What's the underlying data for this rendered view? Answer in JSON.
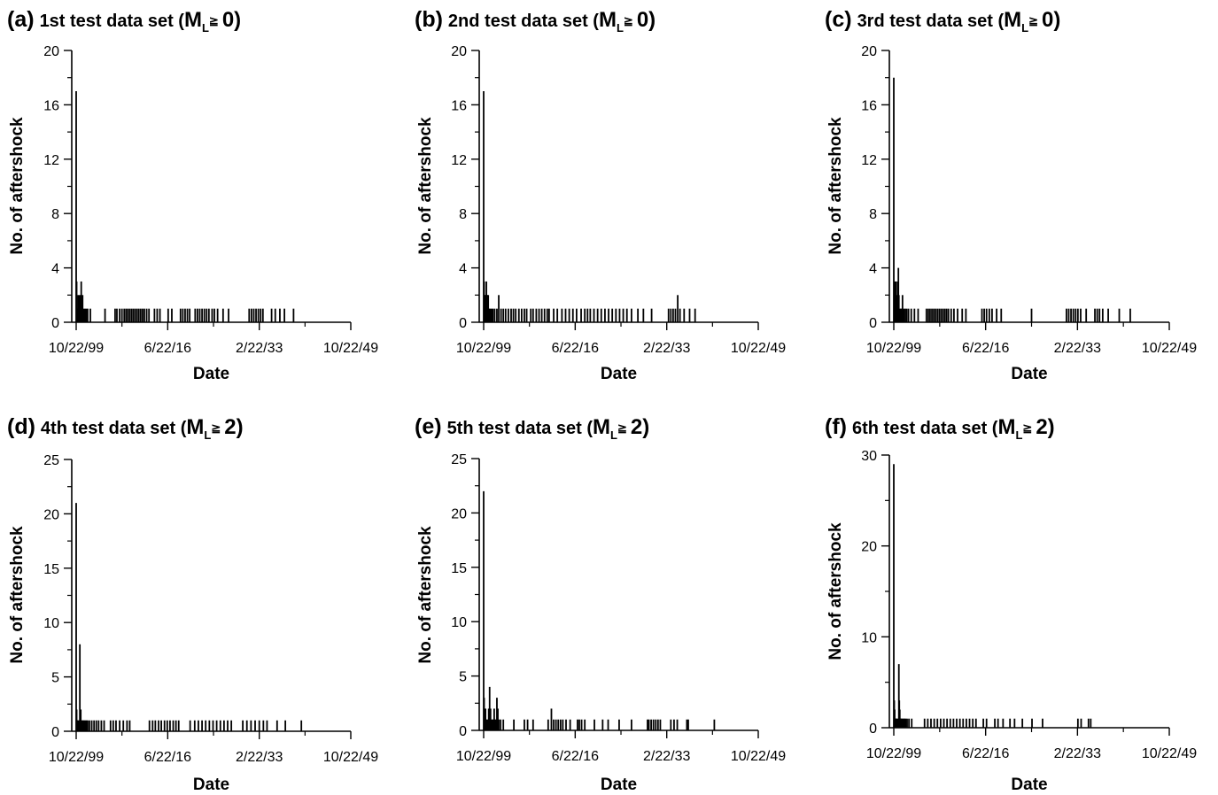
{
  "chart_data": [
    {
      "panel": "(a)",
      "title": "1st test data set",
      "condition": {
        "symbol": "M",
        "subscript": "L",
        "op": "≧",
        "value": "0"
      },
      "type": "bar",
      "xlabel": "Date",
      "ylabel": "No. of aftershock",
      "xticks": [
        "10/22/99",
        "6/22/16",
        "2/22/33",
        "10/22/49"
      ],
      "xlim": [
        "10/22/99",
        "10/22/49"
      ],
      "ylim": [
        0,
        20
      ],
      "yticks": [
        "0",
        "4",
        "8",
        "12",
        "16",
        "20"
      ],
      "x": [
        "10/22/99",
        "11/22/99",
        "12/22/99",
        "1/22/00",
        "2/22/00",
        "3/22/00",
        "5/22/00",
        "6/22/00",
        "8/22/00",
        "9/22/00",
        "12/22/00",
        "2/22/01",
        "5/22/01",
        "8/22/01",
        "11/22/01",
        "5/22/02",
        "1/22/05",
        "11/22/06",
        "3/22/07",
        "9/22/07",
        "2/22/08",
        "7/22/08",
        "11/22/08",
        "3/22/09",
        "7/22/09",
        "11/22/09",
        "3/22/10",
        "7/22/10",
        "11/22/10",
        "3/22/11",
        "7/22/11",
        "11/22/11",
        "3/22/12",
        "8/22/12",
        "1/22/13",
        "1/22/14",
        "7/22/14",
        "1/22/15",
        "7/22/16",
        "3/22/17",
        "10/22/18",
        "3/22/19",
        "8/22/19",
        "1/22/20",
        "6/22/20",
        "6/22/21",
        "11/22/21",
        "4/22/22",
        "9/22/22",
        "2/22/23",
        "7/22/23",
        "12/22/23",
        "7/22/24",
        "12/22/24",
        "7/22/25",
        "7/22/26",
        "7/22/27",
        "4/22/31",
        "9/22/31",
        "2/22/32",
        "7/22/32",
        "12/22/32",
        "5/22/33",
        "10/22/33",
        "5/22/35",
        "1/22/36",
        "11/22/36",
        "9/22/37",
        "5/22/39"
      ],
      "values": [
        17,
        3,
        1,
        1,
        2,
        1,
        2,
        1,
        2,
        3,
        2,
        1,
        1,
        1,
        1,
        1,
        1,
        1,
        1,
        1,
        1,
        1,
        1,
        1,
        1,
        1,
        1,
        1,
        1,
        1,
        1,
        1,
        1,
        1,
        1,
        1,
        1,
        1,
        1,
        1,
        1,
        1,
        1,
        1,
        1,
        1,
        1,
        1,
        1,
        1,
        1,
        1,
        1,
        1,
        1,
        1,
        1,
        1,
        1,
        1,
        1,
        1,
        1,
        1,
        1,
        1,
        1,
        1,
        1
      ]
    },
    {
      "panel": "(b)",
      "title": "2nd  test data set",
      "condition": {
        "symbol": "M",
        "subscript": "L",
        "op": "≧",
        "value": "0"
      },
      "type": "bar",
      "xlabel": "Date",
      "ylabel": "No. of aftershock",
      "xticks": [
        "10/22/99",
        "6/22/16",
        "2/22/33",
        "10/22/49"
      ],
      "xlim": [
        "10/22/99",
        "10/22/49"
      ],
      "ylim": [
        0,
        20
      ],
      "yticks": [
        "0",
        "4",
        "8",
        "12",
        "16",
        "20"
      ],
      "x": [
        "10/22/99",
        "11/22/99",
        "12/22/99",
        "1/22/00",
        "2/22/00",
        "3/22/00",
        "4/22/00",
        "5/22/00",
        "6/22/00",
        "7/22/00",
        "8/22/00",
        "10/22/00",
        "12/22/00",
        "3/22/01",
        "6/22/01",
        "10/22/01",
        "3/22/02",
        "7/22/02",
        "12/22/02",
        "5/22/03",
        "10/22/03",
        "4/22/04",
        "10/22/04",
        "3/22/05",
        "8/22/05",
        "3/22/06",
        "9/22/06",
        "3/22/07",
        "8/22/07",
        "5/22/08",
        "10/22/08",
        "5/22/09",
        "11/22/09",
        "5/22/10",
        "11/22/10",
        "5/22/11",
        "9/22/11",
        "7/22/12",
        "3/22/13",
        "1/22/14",
        "9/22/14",
        "5/22/15",
        "1/22/16",
        "9/22/16",
        "7/22/17",
        "3/22/18",
        "9/22/18",
        "3/22/19",
        "11/22/19",
        "7/22/20",
        "3/22/21",
        "11/22/21",
        "7/22/22",
        "3/22/23",
        "11/22/23",
        "7/22/24",
        "3/22/25",
        "11/22/25",
        "9/22/26",
        "11/22/27",
        "11/22/28",
        "5/22/30",
        "6/22/33",
        "11/22/33",
        "4/22/34",
        "9/22/34",
        "2/22/35",
        "7/22/35",
        "4/22/36",
        "4/22/37",
        "4/22/38"
      ],
      "values": [
        17,
        3,
        2,
        1,
        2,
        2,
        3,
        2,
        2,
        1,
        2,
        1,
        1,
        1,
        1,
        1,
        1,
        2,
        1,
        1,
        1,
        1,
        1,
        1,
        1,
        1,
        1,
        1,
        1,
        1,
        1,
        1,
        1,
        1,
        1,
        1,
        1,
        1,
        1,
        1,
        1,
        1,
        1,
        1,
        1,
        1,
        1,
        1,
        1,
        1,
        1,
        1,
        1,
        1,
        1,
        1,
        1,
        1,
        1,
        1,
        1,
        1,
        1,
        1,
        1,
        1,
        2,
        1,
        1,
        1,
        1
      ]
    },
    {
      "panel": "(c)",
      "title": "3rd test data set",
      "condition": {
        "symbol": "M",
        "subscript": "L",
        "op": "≧",
        "value": "0"
      },
      "type": "bar",
      "xlabel": "Date",
      "ylabel": "No. of aftershock",
      "xticks": [
        "10/22/99",
        "6/22/16",
        "2/22/33",
        "10/22/49"
      ],
      "xlim": [
        "10/22/99",
        "10/22/49"
      ],
      "ylim": [
        0,
        20
      ],
      "yticks": [
        "0",
        "4",
        "8",
        "12",
        "16",
        "20"
      ],
      "x": [
        "10/22/99",
        "11/22/99",
        "12/22/99",
        "1/22/00",
        "3/22/00",
        "5/22/00",
        "7/22/00",
        "8/22/00",
        "9/22/00",
        "11/22/00",
        "1/22/01",
        "3/22/01",
        "5/22/01",
        "8/22/01",
        "11/22/01",
        "2/22/02",
        "6/22/02",
        "12/22/02",
        "7/22/03",
        "3/22/04",
        "9/22/05",
        "1/22/06",
        "5/22/06",
        "9/22/06",
        "1/22/07",
        "5/22/07",
        "9/22/07",
        "1/22/08",
        "5/22/08",
        "9/22/08",
        "1/22/09",
        "5/22/09",
        "9/22/09",
        "3/22/10",
        "9/22/10",
        "5/22/11",
        "3/22/12",
        "11/22/12",
        "10/22/15",
        "3/22/16",
        "8/22/16",
        "2/22/17",
        "8/22/17",
        "6/22/18",
        "4/22/19",
        "10/22/24",
        "2/22/31",
        "7/22/31",
        "12/22/31",
        "5/22/32",
        "10/22/32",
        "3/22/33",
        "9/22/33",
        "9/22/34",
        "4/22/36",
        "9/22/36",
        "2/22/37",
        "9/22/37",
        "9/22/38",
        "9/22/40",
        "9/22/42"
      ],
      "values": [
        18,
        2,
        3,
        2,
        3,
        2,
        3,
        4,
        2,
        1,
        1,
        1,
        2,
        1,
        1,
        1,
        1,
        1,
        1,
        1,
        1,
        1,
        1,
        1,
        1,
        1,
        1,
        1,
        1,
        1,
        1,
        1,
        1,
        1,
        1,
        1,
        1,
        1,
        1,
        1,
        1,
        1,
        1,
        1,
        1,
        1,
        1,
        1,
        1,
        1,
        1,
        1,
        1,
        1,
        1,
        1,
        1,
        1,
        1,
        1,
        1
      ]
    },
    {
      "panel": "(d)",
      "title": "4th test data set",
      "condition": {
        "symbol": "M",
        "subscript": "L",
        "op": "≧",
        "value": "2"
      },
      "type": "bar",
      "xlabel": "Date",
      "ylabel": "No. of aftershock",
      "xticks": [
        "10/22/99",
        "6/22/16",
        "2/22/33",
        "10/22/49"
      ],
      "xlim": [
        "10/22/99",
        "10/22/49"
      ],
      "ylim": [
        0,
        25
      ],
      "yticks": [
        "0",
        "5",
        "10",
        "15",
        "20",
        "25"
      ],
      "x": [
        "10/22/99",
        "11/22/99",
        "12/22/99",
        "1/22/00",
        "2/22/00",
        "4/22/00",
        "6/22/00",
        "8/22/00",
        "10/22/00",
        "12/22/00",
        "1/22/01",
        "3/22/01",
        "5/22/01",
        "7/22/01",
        "9/22/01",
        "11/22/01",
        "3/22/02",
        "8/22/02",
        "1/22/03",
        "6/22/03",
        "11/22/03",
        "5/22/04",
        "11/22/04",
        "1/22/06",
        "7/22/06",
        "1/22/07",
        "9/22/07",
        "5/22/08",
        "1/22/09",
        "7/22/09",
        "2/22/13",
        "9/22/13",
        "3/22/14",
        "10/22/14",
        "4/22/15",
        "11/22/15",
        "5/22/16",
        "11/22/16",
        "6/22/17",
        "12/22/17",
        "6/22/18",
        "7/22/20",
        "5/22/21",
        "1/22/22",
        "9/22/22",
        "5/22/23",
        "1/22/24",
        "9/22/24",
        "5/22/25",
        "1/22/26",
        "9/22/26",
        "5/22/27",
        "1/22/28",
        "2/22/30",
        "11/22/30",
        "8/22/31",
        "5/22/32",
        "2/22/33",
        "11/22/33",
        "7/22/34",
        "5/22/36",
        "11/22/37",
        "10/22/40"
      ],
      "values": [
        21,
        2,
        1,
        1,
        1,
        1,
        8,
        2,
        1,
        1,
        1,
        1,
        1,
        1,
        1,
        1,
        1,
        1,
        1,
        1,
        1,
        1,
        1,
        1,
        1,
        1,
        1,
        1,
        1,
        1,
        1,
        1,
        1,
        1,
        1,
        1,
        1,
        1,
        1,
        1,
        1,
        1,
        1,
        1,
        1,
        1,
        1,
        1,
        1,
        1,
        1,
        1,
        1,
        1,
        1,
        1,
        1,
        1,
        1,
        1,
        1,
        1,
        1
      ]
    },
    {
      "panel": "(e)",
      "title": "5th test data set",
      "condition": {
        "symbol": "M",
        "subscript": "L",
        "op": "≧",
        "value": "2"
      },
      "type": "bar",
      "xlabel": "Date",
      "ylabel": "No. of aftershock",
      "xticks": [
        "10/22/99",
        "6/22/16",
        "2/22/33",
        "10/22/49"
      ],
      "xlim": [
        "10/22/99",
        "10/22/49"
      ],
      "ylim": [
        0,
        25
      ],
      "yticks": [
        "0",
        "5",
        "10",
        "15",
        "20",
        "25"
      ],
      "x": [
        "10/22/99",
        "11/22/99",
        "12/22/99",
        "1/22/00",
        "2/22/00",
        "3/22/00",
        "5/22/00",
        "7/22/00",
        "9/22/00",
        "11/22/00",
        "1/22/01",
        "3/22/01",
        "5/22/01",
        "7/22/01",
        "9/22/01",
        "11/22/01",
        "1/22/02",
        "3/22/02",
        "5/22/02",
        "7/22/02",
        "11/22/02",
        "5/22/03",
        "4/22/05",
        "3/22/07",
        "10/22/07",
        "10/22/08",
        "7/22/11",
        "2/22/12",
        "7/22/12",
        "12/22/12",
        "5/22/13",
        "10/22/13",
        "3/22/14",
        "10/22/14",
        "7/22/15",
        "11/22/16",
        "3/22/17",
        "8/22/17",
        "3/22/18",
        "12/22/19",
        "6/22/21",
        "6/22/22",
        "6/22/24",
        "9/22/26",
        "8/22/29",
        "11/22/29",
        "4/22/30",
        "9/22/30",
        "2/22/31",
        "7/22/31",
        "12/22/31",
        "11/22/33",
        "6/22/34",
        "1/22/35",
        "10/22/36",
        "1/22/37",
        "10/22/41"
      ],
      "values": [
        22,
        3,
        2,
        1,
        2,
        1,
        1,
        1,
        2,
        4,
        2,
        1,
        1,
        1,
        2,
        1,
        1,
        3,
        2,
        1,
        1,
        1,
        1,
        1,
        1,
        1,
        1,
        2,
        1,
        1,
        1,
        1,
        1,
        1,
        1,
        1,
        1,
        1,
        1,
        1,
        1,
        1,
        1,
        1,
        1,
        1,
        1,
        1,
        1,
        1,
        1,
        1,
        1,
        1,
        1,
        1,
        1
      ]
    },
    {
      "panel": "(f)",
      "title": "6th test data set",
      "condition": {
        "symbol": "M",
        "subscript": "L",
        "op": "≧",
        "value": "2"
      },
      "type": "bar",
      "xlabel": "Date",
      "ylabel": "No. of aftershock",
      "xticks": [
        "10/22/99",
        "6/22/16",
        "2/22/33",
        "10/22/49"
      ],
      "xlim": [
        "10/22/99",
        "10/22/49"
      ],
      "ylim": [
        0,
        30
      ],
      "yticks": [
        "0",
        "10",
        "20",
        "30"
      ],
      "x": [
        "10/22/99",
        "11/22/99",
        "12/22/99",
        "1/22/00",
        "2/22/00",
        "3/22/00",
        "5/22/00",
        "7/22/00",
        "9/22/00",
        "10/22/00",
        "11/22/00",
        "12/22/00",
        "1/22/01",
        "2/22/01",
        "4/22/01",
        "6/22/01",
        "8/22/01",
        "10/22/01",
        "12/22/01",
        "3/22/02",
        "7/22/02",
        "1/22/03",
        "5/22/05",
        "12/22/05",
        "7/22/06",
        "2/22/07",
        "9/22/07",
        "4/22/08",
        "11/22/08",
        "6/22/09",
        "1/22/10",
        "8/22/10",
        "3/22/11",
        "10/22/11",
        "5/22/12",
        "12/22/12",
        "7/22/13",
        "2/22/14",
        "9/22/14",
        "1/22/16",
        "8/22/16",
        "2/22/18",
        "9/22/18",
        "8/22/19",
        "11/22/20",
        "9/22/21",
        "2/22/23",
        "11/22/24",
        "10/22/26",
        "3/22/33",
        "10/22/33",
        "2/22/35",
        "7/22/35"
      ],
      "values": [
        29,
        3,
        2,
        1,
        1,
        1,
        1,
        1,
        7,
        3,
        2,
        1,
        1,
        1,
        1,
        1,
        1,
        1,
        1,
        1,
        1,
        1,
        1,
        1,
        1,
        1,
        1,
        1,
        1,
        1,
        1,
        1,
        1,
        1,
        1,
        1,
        1,
        1,
        1,
        1,
        1,
        1,
        1,
        1,
        1,
        1,
        1,
        1,
        1,
        1,
        1,
        1,
        1
      ]
    }
  ]
}
